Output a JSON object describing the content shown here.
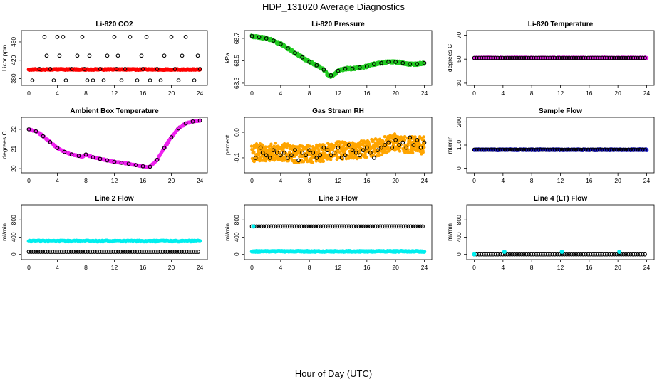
{
  "figure": {
    "title": "HDP_131020  Average Diagnostics",
    "xlabel": "Hour of Day (UTC)"
  },
  "colors": {
    "red": "#ff0000",
    "green": "#22cc22",
    "magenta": "#ee22ee",
    "orange": "#ffa500",
    "blue": "#1010cc",
    "cyan": "#00eeee",
    "black": "#000000"
  },
  "chart_data": [
    {
      "type": "scatter",
      "title": "Li-820 CO2",
      "ylabel": "Licor ppm",
      "xlim": [
        0,
        24
      ],
      "ylim": [
        370,
        480
      ],
      "xticks": [
        0,
        4,
        8,
        12,
        16,
        20,
        24
      ],
      "yticks": [
        380,
        420,
        460
      ],
      "series": [
        {
          "style": "dense",
          "color": "red",
          "x_range": [
            0,
            24
          ],
          "y": [
            400,
            400
          ]
        },
        {
          "style": "circles",
          "color": "black",
          "x": [
            0.5,
            1.5,
            2.2,
            2.5,
            3.0,
            3.5,
            4.0,
            4.3,
            4.8,
            5.2,
            6.0,
            6.8,
            7.5,
            7.8,
            8.2,
            8.5,
            9.0,
            10.0,
            10.5,
            11.0,
            12.0,
            12.3,
            12.5,
            13.0,
            13.5,
            14.2,
            15.2,
            15.8,
            16.0,
            16.5,
            17.0,
            18.0,
            18.5,
            19.0,
            20.0,
            20.5,
            21.0,
            21.5,
            22.0,
            23.2,
            23.7,
            24.0
          ],
          "y": [
            376,
            401,
            471,
            430,
            401,
            376,
            471,
            430,
            471,
            376,
            401,
            430,
            471,
            401,
            376,
            430,
            376,
            401,
            376,
            430,
            471,
            401,
            430,
            376,
            401,
            471,
            376,
            430,
            401,
            471,
            376,
            401,
            376,
            430,
            471,
            401,
            376,
            430,
            471,
            376,
            430,
            401
          ]
        }
      ]
    },
    {
      "type": "scatter",
      "title": "Li-820 Pressure",
      "ylabel": "kPa",
      "xlim": [
        0,
        24
      ],
      "ylim": [
        68.3,
        68.75
      ],
      "xticks": [
        0,
        4,
        8,
        12,
        16,
        20,
        24
      ],
      "yticks": [
        68.3,
        68.5,
        68.7
      ],
      "series": [
        {
          "style": "band",
          "color": "green",
          "spread": 0.012,
          "x": [
            0,
            1,
            2,
            3,
            4,
            5,
            6,
            7,
            8,
            9,
            10,
            10.5,
            11,
            11.5,
            12,
            13,
            14,
            15,
            16,
            17,
            18,
            19,
            20,
            21,
            22,
            23,
            24
          ],
          "y": [
            68.72,
            68.71,
            68.7,
            68.68,
            68.65,
            68.61,
            68.57,
            68.53,
            68.49,
            68.46,
            68.42,
            68.38,
            68.36,
            68.38,
            68.41,
            68.43,
            68.43,
            68.44,
            68.45,
            68.47,
            68.48,
            68.49,
            68.49,
            68.48,
            68.47,
            68.47,
            68.48
          ]
        },
        {
          "style": "circles",
          "color": "black",
          "x": [
            0,
            1,
            2,
            3,
            4,
            5,
            6,
            7,
            8,
            9,
            10,
            11,
            12,
            13,
            14,
            15,
            16,
            17,
            18,
            19,
            20,
            21,
            22,
            23,
            24
          ],
          "y": [
            68.72,
            68.71,
            68.7,
            68.68,
            68.65,
            68.61,
            68.57,
            68.53,
            68.49,
            68.46,
            68.42,
            68.37,
            68.41,
            68.43,
            68.43,
            68.44,
            68.45,
            68.47,
            68.48,
            68.49,
            68.49,
            68.48,
            68.47,
            68.47,
            68.48
          ]
        }
      ]
    },
    {
      "type": "scatter",
      "title": "Li-820 Temperature",
      "ylabel": "degrees C",
      "xlim": [
        0,
        24
      ],
      "ylim": [
        30,
        72
      ],
      "xticks": [
        0,
        4,
        8,
        12,
        16,
        20,
        24
      ],
      "yticks": [
        30,
        50,
        70
      ],
      "series": [
        {
          "style": "dense",
          "color": "magenta",
          "x_range": [
            0,
            24
          ],
          "y": [
            51,
            51
          ]
        },
        {
          "style": "circles",
          "color": "black",
          "x_range": [
            0,
            24
          ],
          "y": [
            51,
            51
          ],
          "step": 0.33
        }
      ]
    },
    {
      "type": "scatter",
      "title": "Ambient Box Temperature",
      "ylabel": "degrees C",
      "xlim": [
        0,
        24
      ],
      "ylim": [
        19.9,
        22.5
      ],
      "xticks": [
        0,
        4,
        8,
        12,
        16,
        20,
        24
      ],
      "yticks": [
        20.0,
        21.0,
        22.0
      ],
      "series": [
        {
          "style": "band",
          "color": "magenta",
          "spread": 0.03,
          "x": [
            0,
            0.5,
            1,
            1.5,
            2,
            2.5,
            3,
            3.5,
            4,
            5,
            6,
            7,
            7.5,
            8,
            8.5,
            9,
            10,
            11,
            12,
            13,
            14,
            15,
            16,
            16.5,
            17,
            18,
            19,
            20,
            21,
            22,
            23,
            24
          ],
          "y": [
            22.0,
            21.95,
            21.9,
            21.8,
            21.65,
            21.5,
            21.35,
            21.2,
            21.05,
            20.85,
            20.72,
            20.65,
            20.6,
            20.72,
            20.65,
            20.58,
            20.5,
            20.42,
            20.35,
            20.3,
            20.25,
            20.18,
            20.12,
            20.08,
            20.1,
            20.45,
            21.05,
            21.6,
            22.05,
            22.3,
            22.4,
            22.45
          ]
        },
        {
          "style": "circles",
          "color": "black",
          "x": [
            0,
            1,
            2,
            3,
            4,
            5,
            6,
            7,
            8,
            9,
            10,
            11,
            12,
            13,
            14,
            15,
            16,
            17,
            18,
            19,
            20,
            21,
            22,
            23,
            24
          ],
          "y": [
            22.0,
            21.9,
            21.65,
            21.35,
            21.05,
            20.85,
            20.72,
            20.65,
            20.72,
            20.58,
            20.5,
            20.42,
            20.35,
            20.3,
            20.25,
            20.18,
            20.12,
            20.1,
            20.45,
            21.05,
            21.6,
            22.05,
            22.3,
            22.4,
            22.45
          ]
        }
      ]
    },
    {
      "type": "scatter",
      "title": "Gas Stream RH",
      "ylabel": "percent",
      "xlim": [
        0,
        24
      ],
      "ylim": [
        -0.15,
        0.05
      ],
      "xticks": [
        0,
        4,
        8,
        12,
        16,
        20,
        24
      ],
      "yticks": [
        -0.1,
        0.0
      ],
      "series": [
        {
          "style": "band",
          "color": "orange",
          "spread": 0.035,
          "x": [
            0,
            2,
            4,
            6,
            8,
            10,
            12,
            14,
            16,
            18,
            19,
            20,
            21,
            22,
            24
          ],
          "y": [
            -0.08,
            -0.08,
            -0.075,
            -0.085,
            -0.085,
            -0.08,
            -0.07,
            -0.07,
            -0.065,
            -0.055,
            -0.045,
            -0.04,
            -0.045,
            -0.05,
            -0.05
          ]
        },
        {
          "style": "circles",
          "color": "black",
          "x": [
            0.5,
            1.2,
            1.5,
            2,
            2.5,
            3,
            3.5,
            4,
            4.5,
            5,
            5.5,
            6,
            6.5,
            7,
            7.5,
            8,
            8.5,
            9,
            9.5,
            10,
            10.5,
            11,
            11.5,
            12,
            12.5,
            13,
            13.5,
            14,
            14.5,
            15,
            15.5,
            16,
            16.5,
            17,
            17.5,
            18,
            18.5,
            19,
            19.5,
            20,
            20.5,
            21,
            21.5,
            22,
            22.5,
            23,
            23.5,
            24
          ],
          "y": [
            -0.1,
            -0.06,
            -0.08,
            -0.09,
            -0.1,
            -0.07,
            -0.08,
            -0.09,
            -0.08,
            -0.1,
            -0.09,
            -0.07,
            -0.11,
            -0.08,
            -0.09,
            -0.07,
            -0.08,
            -0.1,
            -0.09,
            -0.06,
            -0.07,
            -0.09,
            -0.08,
            -0.06,
            -0.1,
            -0.09,
            -0.05,
            -0.07,
            -0.08,
            -0.09,
            -0.07,
            -0.06,
            -0.08,
            -0.1,
            -0.07,
            -0.06,
            -0.05,
            -0.04,
            -0.06,
            -0.03,
            -0.05,
            -0.04,
            -0.06,
            -0.02,
            -0.05,
            -0.03,
            -0.06,
            -0.04
          ]
        }
      ]
    },
    {
      "type": "scatter",
      "title": "Sample Flow",
      "ylabel": "ml/min",
      "xlim": [
        0,
        24
      ],
      "ylim": [
        -10,
        210
      ],
      "xticks": [
        0,
        4,
        8,
        12,
        16,
        20,
        24
      ],
      "yticks": [
        0,
        100,
        200
      ],
      "series": [
        {
          "style": "dense",
          "color": "blue",
          "x_range": [
            0,
            24
          ],
          "y": [
            80,
            80
          ]
        },
        {
          "style": "circles",
          "color": "black",
          "x_range": [
            0,
            24
          ],
          "y": [
            80,
            80
          ],
          "step": 0.33
        }
      ]
    },
    {
      "type": "scatter",
      "title": "Line 2 Flow",
      "ylabel": "ml/min",
      "xlim": [
        0,
        24
      ],
      "ylim": [
        -70,
        1100
      ],
      "xticks": [
        0,
        4,
        8,
        12,
        16,
        20,
        24
      ],
      "yticks": [
        0,
        400,
        800
      ],
      "series": [
        {
          "style": "dense",
          "color": "cyan",
          "x_range": [
            0,
            24
          ],
          "y": [
            310,
            310
          ]
        },
        {
          "style": "circles",
          "color": "black",
          "x_range": [
            0,
            24
          ],
          "y": [
            60,
            60
          ],
          "step": 0.33
        }
      ]
    },
    {
      "type": "scatter",
      "title": "Line 3 Flow",
      "ylabel": "ml/min",
      "xlim": [
        0,
        24
      ],
      "ylim": [
        -70,
        1100
      ],
      "xticks": [
        0,
        4,
        8,
        12,
        16,
        20,
        24
      ],
      "yticks": [
        0,
        400,
        800
      ],
      "series": [
        {
          "style": "dense",
          "color": "cyan",
          "x_range": [
            0,
            24
          ],
          "y": [
            70,
            70
          ]
        },
        {
          "style": "circles",
          "color": "black",
          "x_range": [
            0,
            24
          ],
          "y": [
            650,
            650
          ],
          "step": 0.33
        },
        {
          "style": "dots",
          "color": "cyan",
          "x": [
            0.2
          ],
          "y": [
            650
          ]
        }
      ]
    },
    {
      "type": "scatter",
      "title": "Line 4 (LT) Flow",
      "ylabel": "ml/min",
      "xlim": [
        0,
        24
      ],
      "ylim": [
        -70,
        1100
      ],
      "xticks": [
        0,
        4,
        8,
        12,
        16,
        20,
        24
      ],
      "yticks": [
        0,
        400,
        800
      ],
      "series": [
        {
          "style": "circles",
          "color": "black",
          "x_range": [
            0,
            24
          ],
          "y": [
            0,
            0
          ],
          "step": 0.33
        },
        {
          "style": "dots",
          "color": "cyan",
          "x": [
            0,
            4.2,
            12.2,
            20.2
          ],
          "y": [
            0,
            60,
            60,
            60
          ]
        }
      ]
    }
  ]
}
